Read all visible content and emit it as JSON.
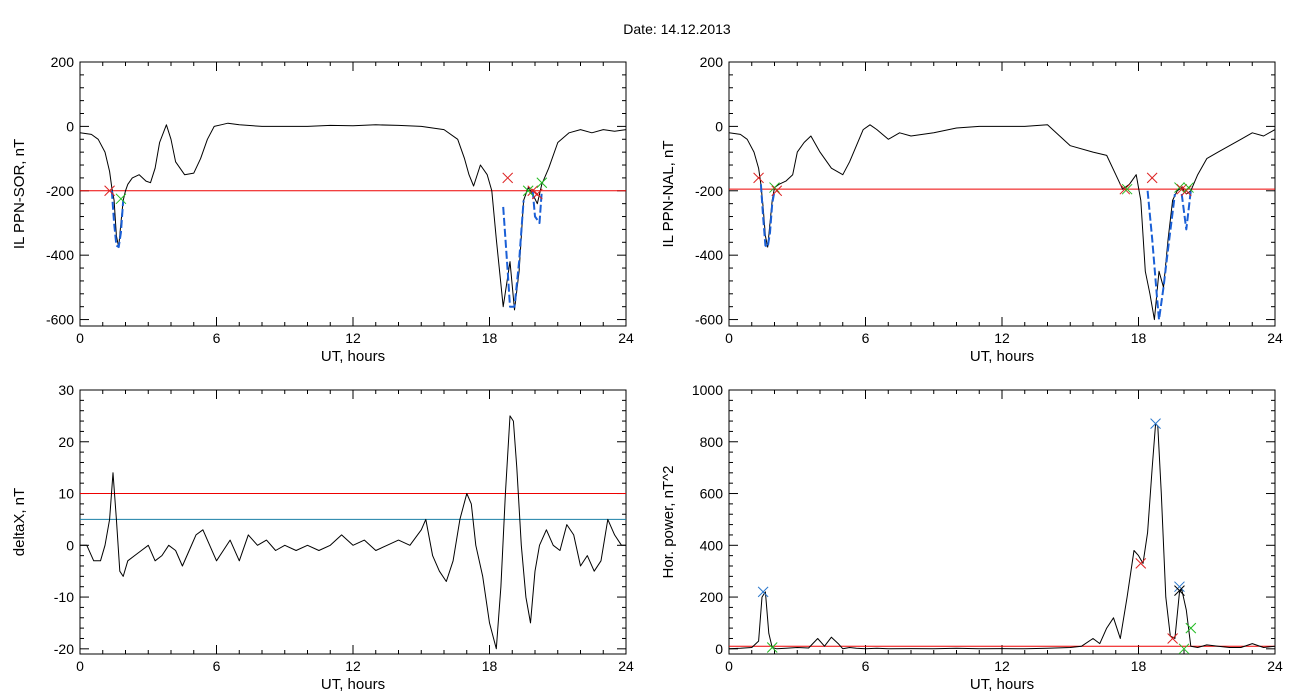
{
  "figure": {
    "title": "Date:  14.12.2013"
  },
  "chart_data": [
    {
      "id": "p1",
      "type": "line",
      "xlabel": "UT, hours",
      "ylabel": "IL PPN-SOR, nT",
      "xlim": [
        0,
        24
      ],
      "ylim": [
        -620,
        200
      ],
      "xticks": [
        0,
        6,
        12,
        18,
        24
      ],
      "yticks": [
        -600,
        -400,
        -200,
        0,
        200
      ],
      "grid": false,
      "hlines": [
        {
          "y": -200,
          "color": "#ee0000"
        }
      ],
      "series": [
        {
          "color": "#000000",
          "x": [
            0,
            0.5,
            0.8,
            1.1,
            1.3,
            1.4,
            1.5,
            1.6,
            1.7,
            1.8,
            1.9,
            2.0,
            2.1,
            2.3,
            2.6,
            2.9,
            3.1,
            3.3,
            3.5,
            3.8,
            4.0,
            4.2,
            4.6,
            5.0,
            5.3,
            5.6,
            5.9,
            6.2,
            6.5,
            7.0,
            8.0,
            9.0,
            10.0,
            11.0,
            12.0,
            13.0,
            14.0,
            15.0,
            16.0,
            16.6,
            16.9,
            17.1,
            17.3,
            17.6,
            17.9,
            18.1,
            18.3,
            18.6,
            18.9,
            19.1,
            19.3,
            19.5,
            19.7,
            19.9,
            20.1,
            20.3,
            20.6,
            21.0,
            21.5,
            22.0,
            22.5,
            23.0,
            23.5,
            24.0
          ],
          "y": [
            -20,
            -25,
            -40,
            -80,
            -140,
            -190,
            -230,
            -340,
            -375,
            -300,
            -230,
            -200,
            -180,
            -160,
            -150,
            -170,
            -175,
            -130,
            -50,
            5,
            -40,
            -110,
            -150,
            -145,
            -100,
            -40,
            0,
            5,
            10,
            5,
            0,
            0,
            0,
            3,
            2,
            5,
            3,
            0,
            -10,
            -40,
            -100,
            -150,
            -185,
            -120,
            -150,
            -200,
            -350,
            -560,
            -420,
            -570,
            -450,
            -230,
            -190,
            -210,
            -240,
            -180,
            -130,
            -50,
            -20,
            -10,
            -20,
            -10,
            -15,
            -10
          ]
        },
        {
          "color": "#1a5fd6",
          "dash": "8,3",
          "x": [
            1.4,
            1.5,
            1.6,
            1.7,
            1.8,
            1.9
          ],
          "y": [
            -200,
            -300,
            -370,
            -375,
            -330,
            -230
          ]
        },
        {
          "color": "#1a5fd6",
          "dash": "8,3",
          "x": [
            18.6,
            18.8,
            18.9,
            19.1,
            19.3,
            19.5
          ],
          "y": [
            -250,
            -450,
            -560,
            -560,
            -420,
            -230
          ]
        },
        {
          "color": "#1a5fd6",
          "dash": "8,3",
          "x": [
            19.9,
            20.0,
            20.2,
            20.3
          ],
          "y": [
            -200,
            -280,
            -300,
            -200
          ]
        }
      ],
      "markers": [
        {
          "x": 1.3,
          "y": -200,
          "color": "#dd2222"
        },
        {
          "x": 1.8,
          "y": -225,
          "color": "#22bb22"
        },
        {
          "x": 18.8,
          "y": -160,
          "color": "#dd2222"
        },
        {
          "x": 19.9,
          "y": -200,
          "color": "#dd2222"
        },
        {
          "x": 20.1,
          "y": -210,
          "color": "#dd2222"
        },
        {
          "x": 19.7,
          "y": -200,
          "color": "#22bb22"
        },
        {
          "x": 20.3,
          "y": -175,
          "color": "#22bb22"
        }
      ]
    },
    {
      "id": "p2",
      "type": "line",
      "xlabel": "UT, hours",
      "ylabel": "IL PPN-NAL, nT",
      "xlim": [
        0,
        24
      ],
      "ylim": [
        -620,
        200
      ],
      "xticks": [
        0,
        6,
        12,
        18,
        24
      ],
      "yticks": [
        -600,
        -400,
        -200,
        0,
        200
      ],
      "grid": false,
      "hlines": [
        {
          "y": -195,
          "color": "#ee0000"
        }
      ],
      "series": [
        {
          "color": "#000000",
          "x": [
            0,
            0.5,
            0.8,
            1.1,
            1.3,
            1.4,
            1.5,
            1.6,
            1.7,
            1.8,
            1.9,
            2.0,
            2.2,
            2.5,
            2.8,
            3.0,
            3.3,
            3.6,
            4.0,
            4.5,
            5.0,
            5.3,
            5.6,
            5.9,
            6.2,
            6.5,
            7.0,
            7.5,
            8.0,
            9.0,
            10.0,
            11.0,
            12.0,
            13.0,
            14.0,
            15.0,
            16.0,
            16.6,
            17.0,
            17.3,
            17.6,
            17.9,
            18.1,
            18.3,
            18.5,
            18.7,
            18.9,
            19.1,
            19.3,
            19.5,
            19.7,
            19.9,
            20.1,
            20.3,
            20.6,
            21.0,
            21.5,
            22.0,
            22.5,
            23.0,
            23.5,
            24.0
          ],
          "y": [
            -20,
            -25,
            -40,
            -80,
            -130,
            -180,
            -250,
            -340,
            -375,
            -300,
            -230,
            -190,
            -180,
            -170,
            -150,
            -80,
            -50,
            -30,
            -80,
            -130,
            -150,
            -110,
            -60,
            -10,
            5,
            -10,
            -40,
            -20,
            -30,
            -20,
            -5,
            0,
            0,
            0,
            5,
            -60,
            -80,
            -90,
            -150,
            -195,
            -180,
            -150,
            -230,
            -450,
            -520,
            -600,
            -450,
            -500,
            -350,
            -230,
            -200,
            -190,
            -210,
            -200,
            -150,
            -100,
            -80,
            -60,
            -40,
            -20,
            -30,
            -10
          ]
        },
        {
          "color": "#1a5fd6",
          "dash": "8,3",
          "x": [
            1.4,
            1.5,
            1.6,
            1.7,
            1.8,
            1.9,
            2.0
          ],
          "y": [
            -180,
            -280,
            -370,
            -375,
            -330,
            -240,
            -200
          ]
        },
        {
          "color": "#1a5fd6",
          "dash": "8,3",
          "x": [
            18.4,
            18.6,
            18.8,
            18.9,
            19.1,
            19.3,
            19.6
          ],
          "y": [
            -200,
            -350,
            -520,
            -600,
            -500,
            -380,
            -210
          ]
        },
        {
          "color": "#1a5fd6",
          "dash": "8,3",
          "x": [
            19.9,
            20.1,
            20.3
          ],
          "y": [
            -210,
            -320,
            -200
          ]
        }
      ],
      "markers": [
        {
          "x": 1.3,
          "y": -160,
          "color": "#dd2222"
        },
        {
          "x": 2.0,
          "y": -190,
          "color": "#22bb22"
        },
        {
          "x": 2.1,
          "y": -200,
          "color": "#dd2222"
        },
        {
          "x": 17.4,
          "y": -195,
          "color": "#dd2222"
        },
        {
          "x": 17.5,
          "y": -195,
          "color": "#22bb22"
        },
        {
          "x": 18.6,
          "y": -160,
          "color": "#dd2222"
        },
        {
          "x": 19.8,
          "y": -190,
          "color": "#22bb22"
        },
        {
          "x": 19.9,
          "y": -195,
          "color": "#dd2222"
        },
        {
          "x": 20.1,
          "y": -200,
          "color": "#dd2222"
        },
        {
          "x": 20.2,
          "y": -190,
          "color": "#22bb22"
        }
      ]
    },
    {
      "id": "p3",
      "type": "line",
      "xlabel": "UT, hours",
      "ylabel": "deltaX, nT",
      "xlim": [
        0,
        24
      ],
      "ylim": [
        -21,
        30
      ],
      "xticks": [
        0,
        6,
        12,
        18,
        24
      ],
      "yticks": [
        -20,
        -10,
        0,
        10,
        20,
        30
      ],
      "grid": false,
      "hlines": [
        {
          "y": 10,
          "color": "#ee0000"
        },
        {
          "y": 5,
          "color": "#1a7fa6"
        }
      ],
      "series": [
        {
          "color": "#000000",
          "x": [
            0,
            0.3,
            0.6,
            0.9,
            1.1,
            1.3,
            1.45,
            1.6,
            1.75,
            1.9,
            2.1,
            2.4,
            2.7,
            3.0,
            3.3,
            3.6,
            3.9,
            4.2,
            4.5,
            4.8,
            5.1,
            5.4,
            5.7,
            6.0,
            6.3,
            6.6,
            7.0,
            7.4,
            7.8,
            8.2,
            8.6,
            9.0,
            9.5,
            10.0,
            10.5,
            11.0,
            11.5,
            12.0,
            12.5,
            13.0,
            13.5,
            14.0,
            14.5,
            15.0,
            15.2,
            15.5,
            15.8,
            16.1,
            16.4,
            16.7,
            17.0,
            17.2,
            17.4,
            17.7,
            18.0,
            18.3,
            18.5,
            18.7,
            18.9,
            19.05,
            19.2,
            19.4,
            19.6,
            19.8,
            20.0,
            20.2,
            20.5,
            20.8,
            21.1,
            21.4,
            21.7,
            22.0,
            22.3,
            22.6,
            22.9,
            23.2,
            23.5,
            23.8,
            24.0
          ],
          "y": [
            0,
            0,
            -3,
            -3,
            0,
            5,
            14,
            5,
            -5,
            -6,
            -3,
            -2,
            -1,
            0,
            -3,
            -2,
            0,
            -1,
            -4,
            -1,
            2,
            3,
            0,
            -3,
            -1,
            1,
            -3,
            2,
            0,
            1,
            -1,
            0,
            -1,
            0,
            -1,
            0,
            2,
            0,
            1,
            -1,
            0,
            1,
            0,
            3,
            5,
            -2,
            -5,
            -7,
            -3,
            5,
            10,
            8,
            0,
            -6,
            -15,
            -20,
            -8,
            10,
            25,
            24,
            15,
            0,
            -10,
            -15,
            -5,
            0,
            3,
            0,
            -1,
            4,
            2,
            -4,
            -2,
            -5,
            -3,
            5,
            2,
            0,
            0
          ]
        }
      ],
      "markers": []
    },
    {
      "id": "p4",
      "type": "line",
      "xlabel": "UT, hours",
      "ylabel": "Hor. power, nT^2",
      "xlim": [
        0,
        24
      ],
      "ylim": [
        -20,
        1000
      ],
      "xticks": [
        0,
        6,
        12,
        18,
        24
      ],
      "yticks": [
        0,
        200,
        400,
        600,
        800,
        1000
      ],
      "grid": false,
      "hlines": [
        {
          "y": 10,
          "color": "#ee0000"
        }
      ],
      "series": [
        {
          "color": "#000000",
          "x": [
            0,
            0.5,
            1.0,
            1.3,
            1.45,
            1.6,
            1.75,
            1.9,
            2.1,
            2.5,
            3.0,
            3.5,
            3.9,
            4.2,
            4.5,
            4.8,
            5.0,
            5.3,
            5.6,
            6.0,
            6.5,
            7.0,
            8.0,
            9.0,
            10.0,
            11.0,
            12.0,
            13.0,
            14.0,
            15.0,
            15.5,
            16.0,
            16.3,
            16.6,
            16.9,
            17.2,
            17.5,
            17.8,
            18.0,
            18.2,
            18.4,
            18.6,
            18.75,
            18.85,
            19.0,
            19.2,
            19.4,
            19.6,
            19.8,
            19.9,
            20.1,
            20.3,
            20.6,
            21.0,
            21.5,
            22.0,
            22.5,
            23.0,
            23.5,
            24.0
          ],
          "y": [
            0,
            2,
            5,
            30,
            200,
            220,
            60,
            5,
            0,
            2,
            5,
            3,
            40,
            10,
            45,
            20,
            0,
            5,
            2,
            0,
            2,
            0,
            1,
            0,
            2,
            0,
            1,
            0,
            2,
            5,
            10,
            40,
            20,
            80,
            120,
            40,
            200,
            380,
            360,
            330,
            450,
            700,
            870,
            860,
            600,
            200,
            50,
            40,
            220,
            230,
            150,
            10,
            5,
            15,
            10,
            5,
            5,
            20,
            5,
            10
          ]
        }
      ],
      "markers": [
        {
          "x": 1.5,
          "y": 220,
          "color": "#2a77cc"
        },
        {
          "x": 1.9,
          "y": 5,
          "color": "#22bb22"
        },
        {
          "x": 18.1,
          "y": 330,
          "color": "#dd2222"
        },
        {
          "x": 18.75,
          "y": 870,
          "color": "#2a77cc"
        },
        {
          "x": 19.5,
          "y": 40,
          "color": "#dd2222"
        },
        {
          "x": 19.8,
          "y": 240,
          "color": "#2a77cc"
        },
        {
          "x": 19.8,
          "y": 225,
          "color": "#000000"
        },
        {
          "x": 20.0,
          "y": 0,
          "color": "#22bb22"
        },
        {
          "x": 20.3,
          "y": 80,
          "color": "#22bb22"
        }
      ]
    }
  ]
}
